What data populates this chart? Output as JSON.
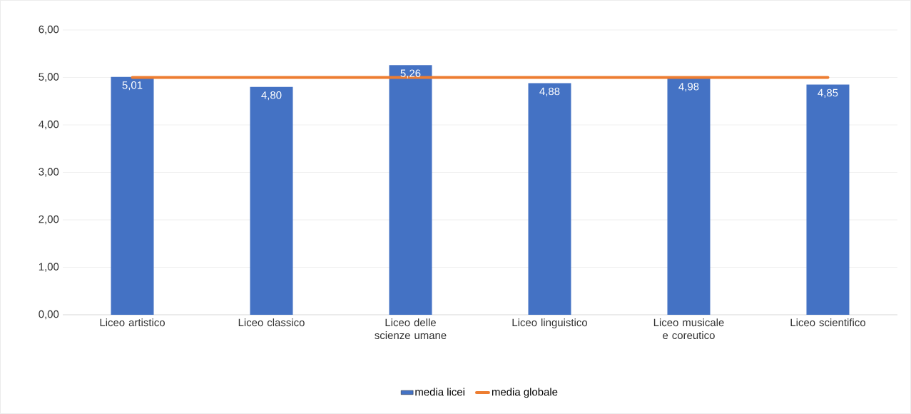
{
  "chart_data": {
    "type": "bar",
    "categories": [
      "Liceo artistico",
      "Liceo classico",
      "Liceo delle scienze umane",
      "Liceo linguistico",
      "Liceo musicale e coreutico",
      "Liceo scientifico"
    ],
    "series": [
      {
        "name": "media licei",
        "color": "#4472c4",
        "values": [
          5.01,
          4.8,
          5.26,
          4.88,
          4.98,
          4.85
        ],
        "value_labels": [
          "5,01",
          "4,80",
          "5,26",
          "4,88",
          "4,98",
          "4,85"
        ]
      },
      {
        "name": "media globale",
        "type": "line",
        "color": "#ed7d31",
        "values": [
          5.0,
          5.0,
          5.0,
          5.0,
          5.0,
          5.0
        ]
      }
    ],
    "ylim": [
      0,
      6
    ],
    "yticks": [
      {
        "value": 0,
        "label": "0,00"
      },
      {
        "value": 1,
        "label": "1,00"
      },
      {
        "value": 2,
        "label": "2,00"
      },
      {
        "value": 3,
        "label": "3,00"
      },
      {
        "value": 4,
        "label": "4,00"
      },
      {
        "value": 5,
        "label": "5,00"
      },
      {
        "value": 6,
        "label": "6,00"
      }
    ],
    "grid": "y",
    "legend": "bottom"
  }
}
